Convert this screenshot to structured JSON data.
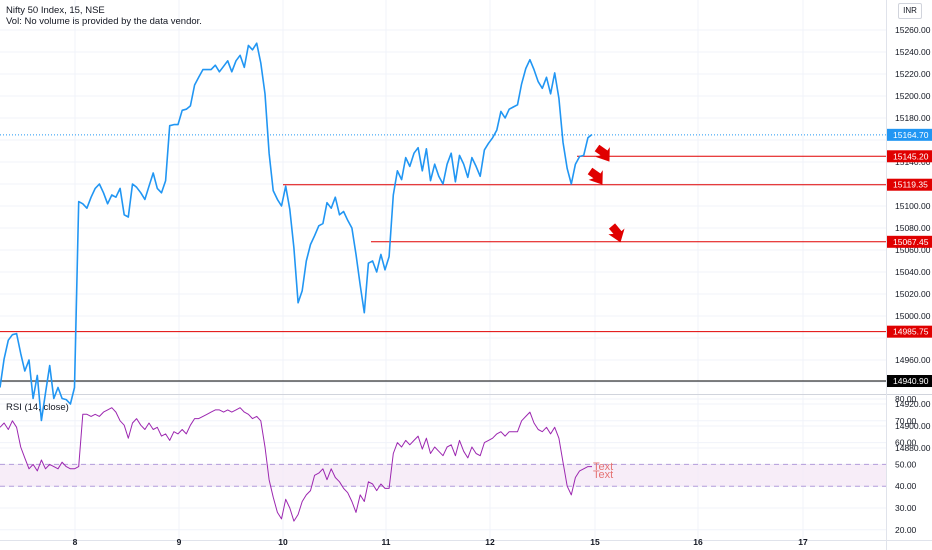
{
  "header": {
    "title": "Nifty 50 Index, 15, NSE",
    "volume_note": "Vol: No volume is provided by the data vendor."
  },
  "currency": "INR",
  "rsi": {
    "title": "RSI (14, close)",
    "upper": 50,
    "lower": 40,
    "band_color": "#f3e5f5",
    "line_color": "#9c27b0",
    "y_ticks": [
      "80.00",
      "70.00",
      "60.00",
      "50.00",
      "40.00",
      "30.00",
      "20.00"
    ],
    "annotations": [
      "Text",
      "Text"
    ]
  },
  "colors": {
    "price_line": "#2196f3",
    "resistance": "#e00000",
    "support": "#000000",
    "current_price": "#2196f3"
  },
  "chart_data": {
    "type": "line",
    "x_ticks": [
      "8",
      "9",
      "10",
      "11",
      "12",
      "15",
      "16",
      "17"
    ],
    "y_ticks": [
      "15260.00",
      "15240.00",
      "15220.00",
      "15200.00",
      "15180.00",
      "15140.00",
      "15100.00",
      "15080.00",
      "15060.00",
      "15040.00",
      "15020.00",
      "15000.00",
      "14960.00",
      "14920.00",
      "14900.00",
      "14880.00"
    ],
    "ylim": [
      14870,
      15280
    ],
    "price": [
      14935,
      14961,
      14978,
      14983,
      14984,
      14966,
      14950,
      14960,
      14925,
      14946,
      14905,
      14930,
      14955,
      14925,
      14935,
      14925,
      14924,
      14920,
      14935,
      15104,
      15102,
      15098,
      15108,
      15116,
      15120,
      15112,
      15102,
      15110,
      15108,
      15116,
      15092,
      15090,
      15120,
      15117,
      15112,
      15106,
      15118,
      15130,
      15116,
      15112,
      15123,
      15173,
      15174,
      15174,
      15187,
      15188,
      15191,
      15210,
      15217,
      15224,
      15224,
      15224,
      15228,
      15222,
      15227,
      15232,
      15222,
      15232,
      15237,
      15226,
      15246,
      15242,
      15248,
      15230,
      15202,
      15148,
      15114,
      15106,
      15100,
      15118,
      15097,
      15062,
      15012,
      15023,
      15050,
      15065,
      15073,
      15082,
      15084,
      15103,
      15098,
      15108,
      15092,
      15095,
      15087,
      15080,
      15056,
      15028,
      15003,
      15048,
      15050,
      15040,
      15056,
      15042,
      15054,
      15110,
      15132,
      15124,
      15144,
      15136,
      15148,
      15153,
      15132,
      15152,
      15123,
      15138,
      15127,
      15120,
      15138,
      15148,
      15122,
      15146,
      15138,
      15126,
      15144,
      15136,
      15127,
      15151,
      15157,
      15162,
      15169,
      15186,
      15180,
      15188,
      15190,
      15192,
      15211,
      15225,
      15233,
      15224,
      15213,
      15207,
      15217,
      15202,
      15221,
      15198,
      15158,
      15134,
      15120,
      15138,
      15145,
      15146,
      15162,
      15165
    ],
    "price_ticks": [
      {
        "label": "15145.20",
        "value": 15145.2,
        "kind": "resistance"
      },
      {
        "label": "15119.35",
        "value": 15119.35,
        "kind": "resistance"
      },
      {
        "label": "15067.45",
        "value": 15067.45,
        "kind": "resistance"
      },
      {
        "label": "14985.75",
        "value": 14985.75,
        "kind": "resistance"
      },
      {
        "label": "14940.90",
        "value": 14940.9,
        "kind": "support"
      },
      {
        "label": "15164.70",
        "value": 15164.7,
        "kind": "current"
      }
    ],
    "rsi_ylim": [
      17,
      82
    ],
    "rsi_values": [
      67,
      69,
      66,
      70,
      67,
      58,
      53,
      48,
      50,
      47,
      52,
      48,
      50,
      49,
      48,
      51,
      49,
      48,
      48,
      49,
      73,
      73,
      72,
      73,
      72,
      74,
      75,
      76,
      74,
      70,
      68,
      62,
      69,
      71,
      68,
      66,
      69,
      66,
      67,
      63,
      64,
      61,
      65,
      64,
      66,
      64,
      68,
      71,
      71,
      72,
      73,
      74,
      75,
      75,
      74,
      75,
      74,
      75,
      76,
      74,
      73,
      71,
      72,
      70,
      58,
      43,
      35,
      28,
      25,
      34,
      30,
      24,
      27,
      33,
      36,
      38,
      45,
      46,
      48,
      43,
      48,
      44,
      42,
      39,
      37,
      33,
      28,
      36,
      33,
      42,
      41,
      38,
      41,
      39,
      39,
      55,
      60,
      58,
      61,
      59,
      61,
      63,
      57,
      62,
      55,
      58,
      56,
      54,
      58,
      59,
      54,
      61,
      56,
      53,
      58,
      55,
      54,
      60,
      61,
      62,
      64,
      65,
      63,
      65,
      65,
      65,
      70,
      72,
      74,
      69,
      66,
      65,
      67,
      64,
      67,
      62,
      51,
      40,
      36,
      44,
      47,
      48,
      49,
      49
    ]
  }
}
